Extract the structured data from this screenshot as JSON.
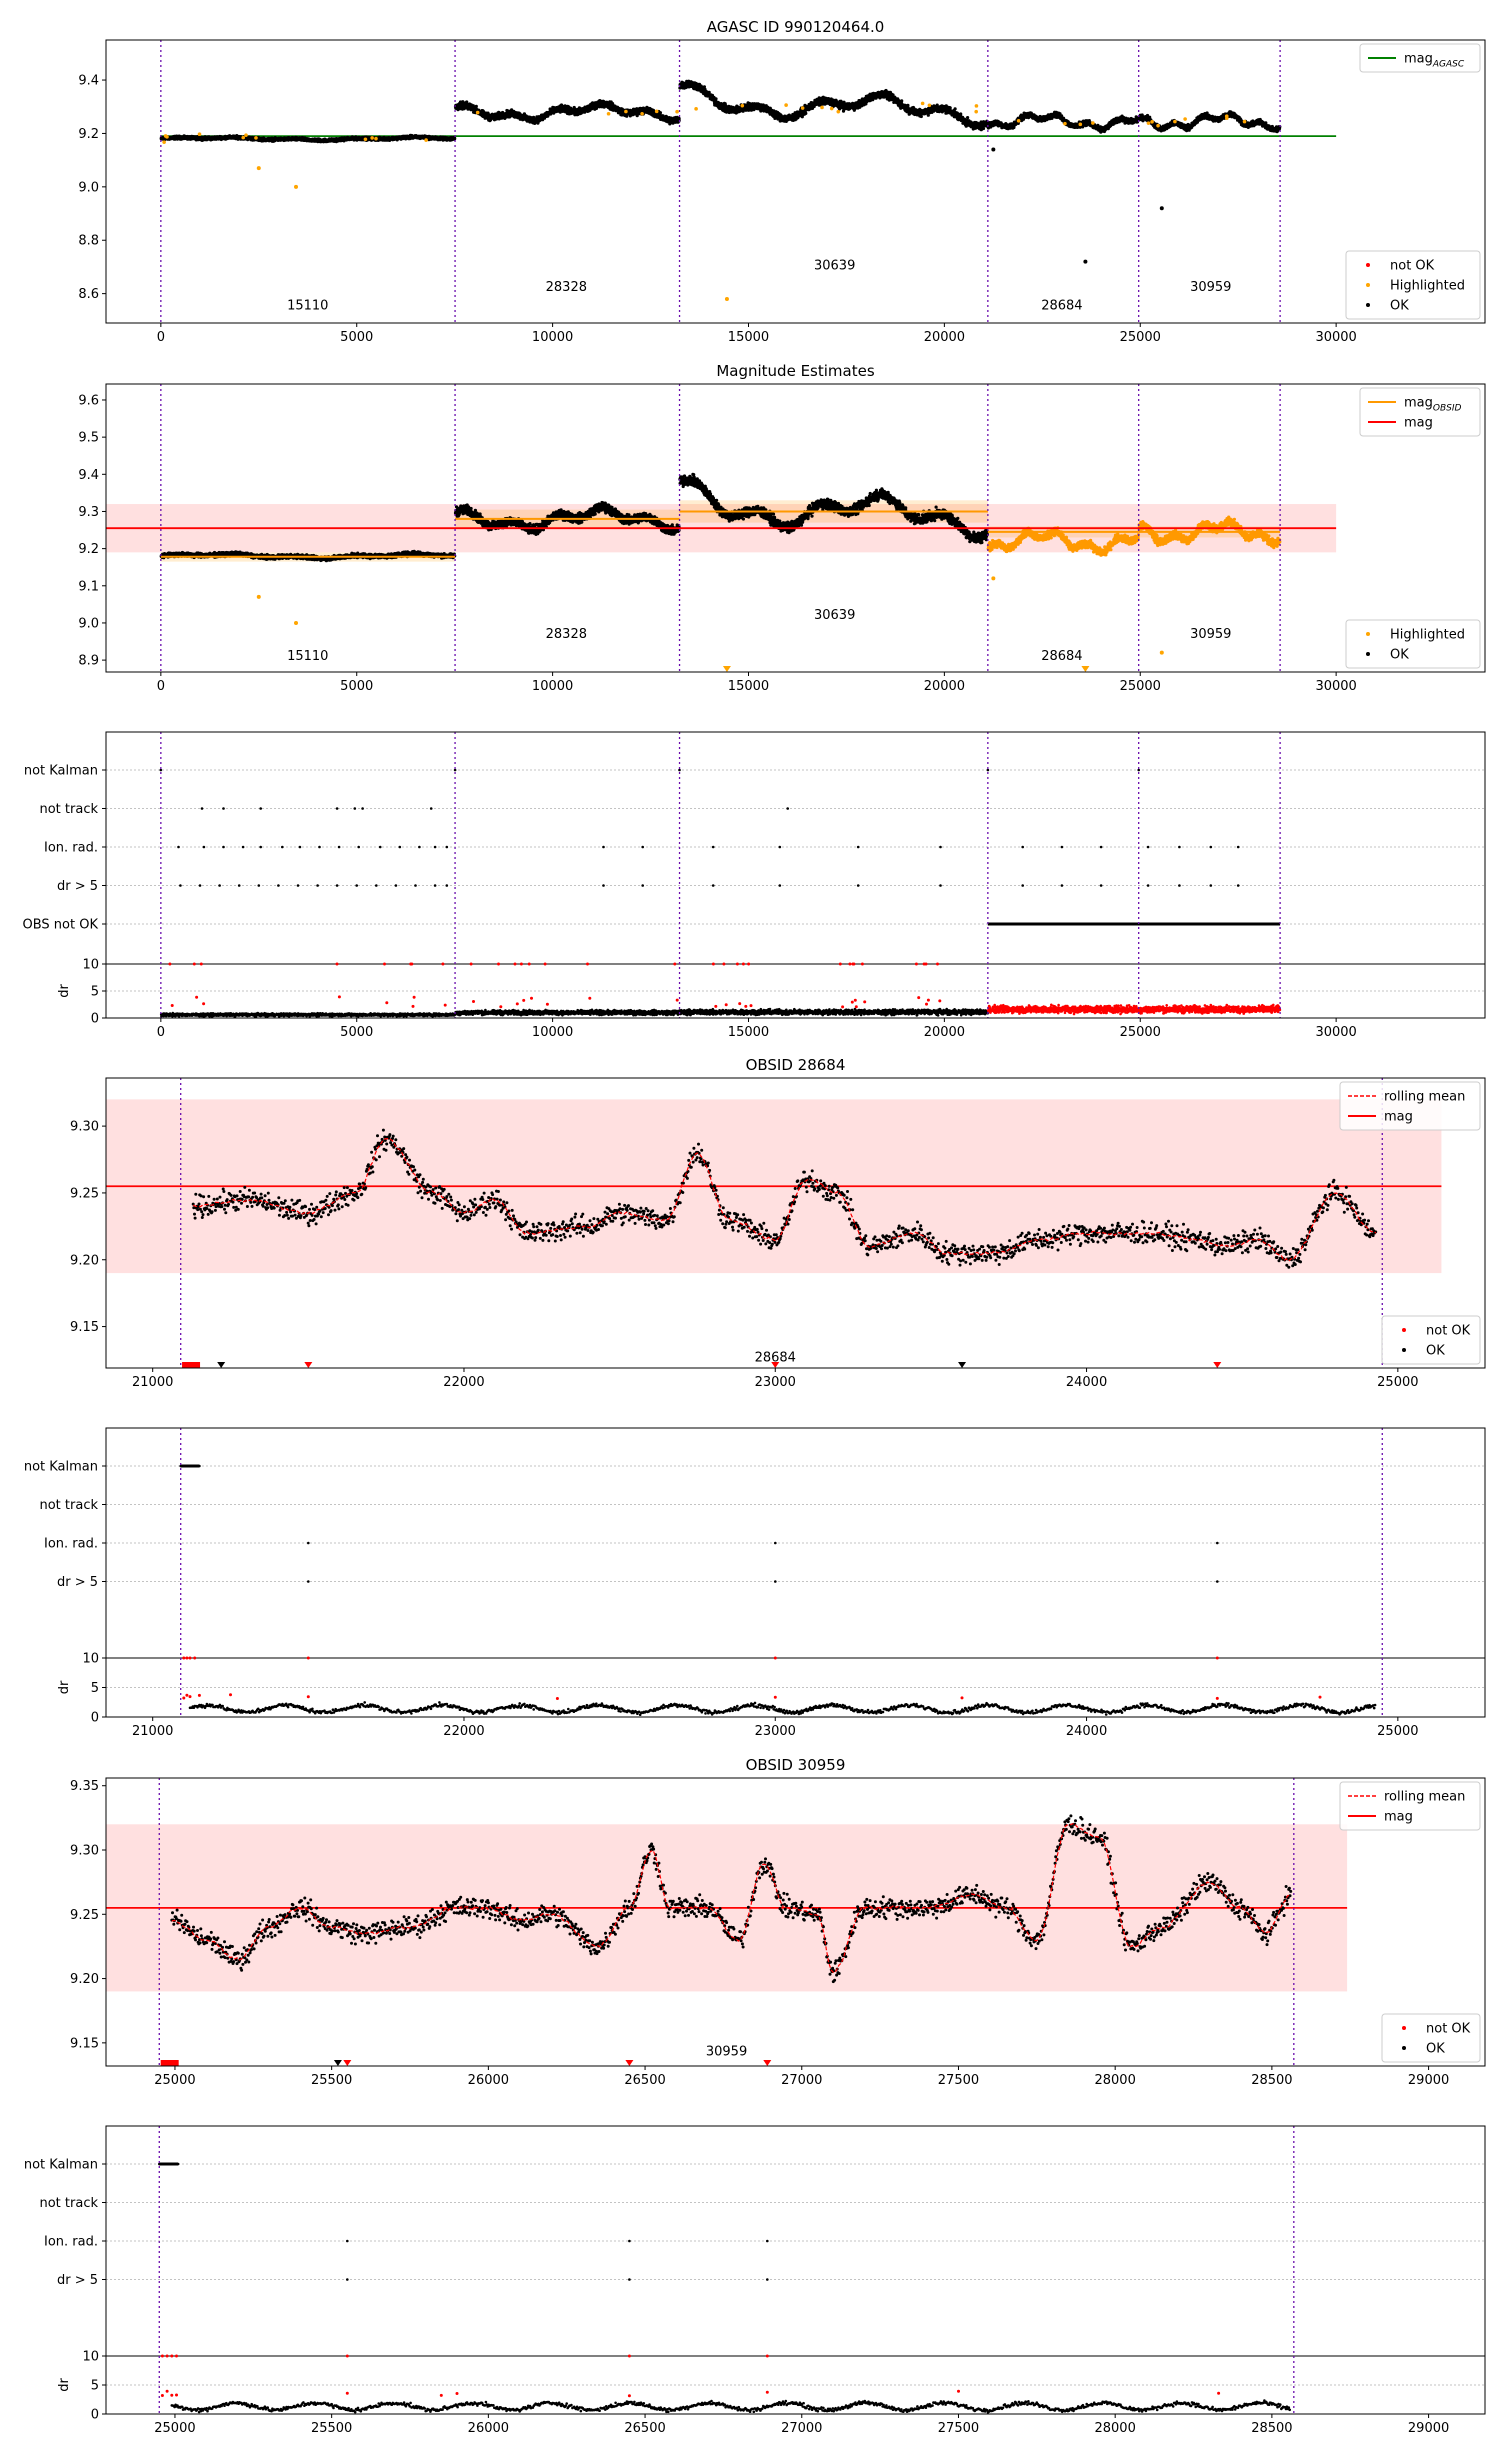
{
  "chart_data": [
    {
      "id": "p1",
      "type": "scatter",
      "title": "AGASC ID 990120464.0",
      "xlim": [
        -1400,
        33800
      ],
      "ylim": [
        8.49,
        9.55
      ],
      "xticks": [
        0,
        5000,
        10000,
        15000,
        20000,
        25000,
        30000
      ],
      "yticks": [
        8.6,
        8.8,
        9.0,
        9.2,
        9.4
      ],
      "ytick_labels": [
        "8.6",
        "8.8",
        "9.0",
        "9.2",
        "9.4"
      ],
      "boundaries": [
        0,
        7510,
        13240,
        21110,
        24960,
        28570
      ],
      "obsids": [
        {
          "label": "15110",
          "x": 3750,
          "y": 8.54
        },
        {
          "label": "28328",
          "x": 10350,
          "y": 8.61
        },
        {
          "label": "30639",
          "x": 17200,
          "y": 8.69
        },
        {
          "label": "28684",
          "x": 23000,
          "y": 8.54
        },
        {
          "label": "30959",
          "x": 26800,
          "y": 8.61
        }
      ],
      "reference_line": {
        "name": "mag_AGASC",
        "value": 9.19,
        "x_range": [
          0,
          30000
        ],
        "color": "#008000"
      },
      "legend_upper": [
        {
          "label": "mag",
          "sub": "AGASC",
          "kind": "line",
          "color": "#008000"
        }
      ],
      "legend_lower": [
        {
          "label": "not OK",
          "kind": "dot",
          "color": "#ff0000"
        },
        {
          "label": "Highlighted",
          "kind": "dot",
          "color": "#ffa500"
        },
        {
          "label": "OK",
          "kind": "dot",
          "color": "#000000"
        }
      ],
      "segments": [
        {
          "x0": 0,
          "x1": 7510,
          "base": 9.18,
          "amp": 0.004,
          "noise": 0.008
        },
        {
          "x0": 7510,
          "x1": 13240,
          "base": 9.28,
          "amp": 0.02,
          "noise": 0.018
        },
        {
          "x0": 13240,
          "x1": 21110,
          "base": 9.3,
          "amp": 0.035,
          "noise": 0.02
        },
        {
          "x0": 21110,
          "x1": 24960,
          "base": 9.245,
          "amp": 0.02,
          "noise": 0.014
        },
        {
          "x0": 24960,
          "x1": 28570,
          "base": 9.245,
          "amp": 0.02,
          "noise": 0.014
        }
      ],
      "outliers": [
        {
          "x": 2500,
          "y": 9.07,
          "color": "#ffa500"
        },
        {
          "x": 3450,
          "y": 9.0,
          "color": "#ffa500"
        },
        {
          "x": 14450,
          "y": 8.58,
          "color": "#ffa500"
        },
        {
          "x": 23600,
          "y": 8.72,
          "color": "#000000"
        },
        {
          "x": 25550,
          "y": 8.92,
          "color": "#000000"
        },
        {
          "x": 21250,
          "y": 9.14,
          "color": "#000000"
        }
      ]
    },
    {
      "id": "p2",
      "type": "scatter",
      "title": "Magnitude Estimates",
      "xlim": [
        -1400,
        33800
      ],
      "ylim": [
        8.868,
        9.643
      ],
      "xticks": [
        0,
        5000,
        10000,
        15000,
        20000,
        25000,
        30000
      ],
      "yticks": [
        8.9,
        9.0,
        9.1,
        9.2,
        9.3,
        9.4,
        9.5,
        9.6
      ],
      "ytick_labels": [
        "8.9",
        "9.0",
        "9.1",
        "9.2",
        "9.3",
        "9.4",
        "9.5",
        "9.6"
      ],
      "boundaries": [
        0,
        7510,
        13240,
        21110,
        24960,
        28570
      ],
      "obsids": [
        {
          "label": "15110",
          "x": 3750,
          "y": 8.9
        },
        {
          "label": "28328",
          "x": 10350,
          "y": 8.96
        },
        {
          "label": "30639",
          "x": 17200,
          "y": 9.01
        },
        {
          "label": "28684",
          "x": 23000,
          "y": 8.9
        },
        {
          "label": "30959",
          "x": 26800,
          "y": 8.96
        }
      ],
      "mag_line": {
        "value": 9.255,
        "band": [
          9.19,
          9.32
        ],
        "x_range": [
          -1400,
          30000
        ]
      },
      "obsid_mags": [
        {
          "x0": 0,
          "x1": 7510,
          "value": 9.178,
          "band": [
            9.165,
            9.19
          ]
        },
        {
          "x0": 7510,
          "x1": 13240,
          "value": 9.28,
          "band": [
            9.255,
            9.305
          ]
        },
        {
          "x0": 13240,
          "x1": 21110,
          "value": 9.3,
          "band": [
            9.27,
            9.33
          ]
        },
        {
          "x0": 21110,
          "x1": 24960,
          "value": 9.245,
          "band": [
            9.23,
            9.26
          ]
        },
        {
          "x0": 24960,
          "x1": 28570,
          "value": 9.245,
          "band": [
            9.23,
            9.26
          ]
        }
      ],
      "legend_upper": [
        {
          "label": "mag",
          "sub": "OBSID",
          "kind": "line",
          "color": "#ff9900"
        },
        {
          "label": "mag",
          "kind": "line",
          "color": "#ff0000"
        }
      ],
      "legend_lower": [
        {
          "label": "Highlighted",
          "kind": "dot",
          "color": "#ffa500"
        },
        {
          "label": "OK",
          "kind": "dot",
          "color": "#000000"
        }
      ],
      "segments": [
        {
          "x0": 0,
          "x1": 7510,
          "base": 9.18,
          "amp": 0.004,
          "noise": 0.008,
          "color": "#000000"
        },
        {
          "x0": 7510,
          "x1": 13240,
          "base": 9.28,
          "amp": 0.02,
          "noise": 0.018,
          "color": "#000000"
        },
        {
          "x0": 13240,
          "x1": 21110,
          "base": 9.3,
          "amp": 0.035,
          "noise": 0.02,
          "color": "#000000"
        },
        {
          "x0": 21110,
          "x1": 24960,
          "base": 9.22,
          "amp": 0.02,
          "noise": 0.015,
          "color": "#ff9900"
        },
        {
          "x0": 24960,
          "x1": 28570,
          "base": 9.245,
          "amp": 0.02,
          "noise": 0.016,
          "color": "#ff9900"
        }
      ],
      "outliers": [
        {
          "x": 2500,
          "y": 9.07,
          "color": "#ffa500"
        },
        {
          "x": 3450,
          "y": 9.0,
          "color": "#ffa500"
        },
        {
          "x": 25550,
          "y": 8.92,
          "color": "#ffa500"
        },
        {
          "x": 21250,
          "y": 9.12,
          "color": "#ffa500"
        }
      ],
      "clipped_markers": [
        14450,
        23600
      ]
    },
    {
      "id": "p3",
      "type": "scatter",
      "title": "",
      "xlim": [
        -1400,
        33800
      ],
      "ylim": [
        0,
        10
      ],
      "xticks": [
        0,
        5000,
        10000,
        15000,
        20000,
        25000,
        30000
      ],
      "yticks": [
        0,
        5,
        10
      ],
      "ytick_labels": [
        "0",
        "5",
        "10"
      ],
      "ylabel": "dr",
      "boundaries": [
        0,
        7510,
        13240,
        21110,
        24960,
        28570
      ],
      "flag_labels": [
        "not Kalman",
        "not track",
        "Ion. rad.",
        "dr > 5",
        "OBS not OK"
      ],
      "flags": [
        [
          0,
          7510,
          13240,
          21110,
          24960
        ],
        [
          1050,
          1600,
          2550,
          4500,
          4950,
          5150,
          6900,
          16000
        ],
        [
          450,
          1100,
          1600,
          2100,
          2550,
          3100,
          3550,
          4050,
          4550,
          5050,
          5600,
          6100,
          6600,
          7000,
          7300,
          11300,
          12300,
          14100,
          15800,
          17800,
          19900,
          22000,
          23000,
          24000,
          25200,
          26000,
          26800,
          27500
        ],
        [
          500,
          1000,
          1500,
          2000,
          2500,
          3000,
          3500,
          4000,
          4500,
          5000,
          5500,
          6000,
          6500,
          7000,
          7300,
          11300,
          12300,
          14100,
          15800,
          17800,
          19900,
          22000,
          23000,
          24000,
          25200,
          26000,
          26800,
          27500
        ]
      ],
      "obs_not_ok_range": [
        21110,
        28570
      ],
      "dr_segments": [
        {
          "x0": 0,
          "x1": 7510,
          "base": 0.6,
          "color": "#000000",
          "red_spikes": 8
        },
        {
          "x0": 7510,
          "x1": 13240,
          "base": 1.0,
          "color": "#000000",
          "red_spikes": 8
        },
        {
          "x0": 13240,
          "x1": 21110,
          "base": 1.1,
          "color": "#000000",
          "red_spikes": 14
        },
        {
          "x0": 21110,
          "x1": 28570,
          "base": 1.6,
          "color": "#ff0000",
          "red_spikes": 0
        }
      ]
    },
    {
      "id": "p4",
      "type": "line",
      "title": "OBSID 28684",
      "xlim": [
        20850,
        25280
      ],
      "ylim": [
        9.119,
        9.336
      ],
      "xticks": [
        21000,
        22000,
        23000,
        24000,
        25000
      ],
      "yticks": [
        9.15,
        9.2,
        9.25,
        9.3
      ],
      "ytick_labels": [
        "9.15",
        "9.20",
        "9.25",
        "9.30"
      ],
      "boundaries": [
        21090,
        24950
      ],
      "obsids": [
        {
          "label": "28684",
          "x": 23000,
          "y": 9.124
        }
      ],
      "mag_line": {
        "value": 9.255,
        "band": [
          9.19,
          9.32
        ],
        "x_range": [
          20850,
          25140
        ]
      },
      "legend_upper": [
        {
          "label": "rolling mean",
          "kind": "dashed",
          "color": "#ff0000"
        },
        {
          "label": "mag",
          "kind": "line",
          "color": "#ff0000"
        }
      ],
      "legend_lower": [
        {
          "label": "not OK",
          "kind": "dot",
          "color": "#ff0000"
        },
        {
          "label": "OK",
          "kind": "dot",
          "color": "#000000"
        }
      ],
      "series_range": [
        21130,
        24930
      ],
      "series_keypoints": [
        [
          21130,
          9.24
        ],
        [
          21300,
          9.245
        ],
        [
          21500,
          9.235
        ],
        [
          21650,
          9.25
        ],
        [
          21750,
          9.29
        ],
        [
          21900,
          9.25
        ],
        [
          22000,
          9.235
        ],
        [
          22100,
          9.245
        ],
        [
          22200,
          9.22
        ],
        [
          22400,
          9.225
        ],
        [
          22500,
          9.235
        ],
        [
          22650,
          9.23
        ],
        [
          22750,
          9.28
        ],
        [
          22850,
          9.23
        ],
        [
          23000,
          9.215
        ],
        [
          23100,
          9.26
        ],
        [
          23200,
          9.25
        ],
        [
          23300,
          9.21
        ],
        [
          23450,
          9.22
        ],
        [
          23550,
          9.205
        ],
        [
          23700,
          9.205
        ],
        [
          23850,
          9.215
        ],
        [
          24000,
          9.22
        ],
        [
          24200,
          9.22
        ],
        [
          24350,
          9.215
        ],
        [
          24450,
          9.21
        ],
        [
          24550,
          9.215
        ],
        [
          24650,
          9.2
        ],
        [
          24800,
          9.25
        ],
        [
          24930,
          9.22
        ]
      ],
      "markers": [
        {
          "x": 21120,
          "color": "#ff0000",
          "wide": true
        },
        {
          "x": 21220,
          "color": "#000000"
        },
        {
          "x": 21500,
          "color": "#ff0000"
        },
        {
          "x": 23000,
          "color": "#ff0000"
        },
        {
          "x": 23600,
          "color": "#000000"
        },
        {
          "x": 24420,
          "color": "#ff0000"
        }
      ]
    },
    {
      "id": "p5",
      "type": "scatter",
      "title": "",
      "xlim": [
        20850,
        25280
      ],
      "ylim": [
        0,
        10
      ],
      "xticks": [
        21000,
        22000,
        23000,
        24000,
        25000
      ],
      "yticks": [
        0,
        5,
        10
      ],
      "ytick_labels": [
        "0",
        "5",
        "10"
      ],
      "ylabel": "dr",
      "boundaries": [
        21090,
        24950
      ],
      "flag_labels": [
        "not Kalman",
        "not track",
        "Ion. rad.",
        "dr > 5"
      ],
      "flags": [
        [
          21090,
          21105,
          21120,
          21135,
          21150
        ],
        [],
        [
          21500,
          23000,
          24420
        ],
        [
          21500,
          23000,
          24420
        ]
      ],
      "obs_not_ok_range": null,
      "dr_range": [
        21120,
        24930
      ],
      "dr_base": 1.4,
      "red_dr_x": [
        21100,
        21110,
        21120,
        21150,
        21500,
        23000,
        24420,
        22300,
        23600,
        24750,
        21250
      ],
      "top_red": [
        21100,
        21110,
        21120,
        21135,
        21500,
        23000,
        24420
      ]
    },
    {
      "id": "p6",
      "type": "line",
      "title": "OBSID 30959",
      "xlim": [
        24780,
        29180
      ],
      "ylim": [
        9.132,
        9.356
      ],
      "xticks": [
        25000,
        25500,
        26000,
        26500,
        27000,
        27500,
        28000,
        28500,
        29000
      ],
      "yticks": [
        9.15,
        9.2,
        9.25,
        9.3,
        9.35
      ],
      "ytick_labels": [
        "9.15",
        "9.20",
        "9.25",
        "9.30",
        "9.35"
      ],
      "boundaries": [
        24950,
        28570
      ],
      "obsids": [
        {
          "label": "30959",
          "x": 26760,
          "y": 9.14
        }
      ],
      "mag_line": {
        "value": 9.255,
        "band": [
          9.19,
          9.32
        ],
        "x_range": [
          24780,
          28740
        ]
      },
      "legend_upper": [
        {
          "label": "rolling mean",
          "kind": "dashed",
          "color": "#ff0000"
        },
        {
          "label": "mag",
          "kind": "line",
          "color": "#ff0000"
        }
      ],
      "legend_lower": [
        {
          "label": "not OK",
          "kind": "dot",
          "color": "#ff0000"
        },
        {
          "label": "OK",
          "kind": "dot",
          "color": "#000000"
        }
      ],
      "series_range": [
        24990,
        28560
      ],
      "series_keypoints": [
        [
          24990,
          9.245
        ],
        [
          25100,
          9.23
        ],
        [
          25200,
          9.215
        ],
        [
          25300,
          9.24
        ],
        [
          25400,
          9.255
        ],
        [
          25500,
          9.24
        ],
        [
          25600,
          9.235
        ],
        [
          25750,
          9.24
        ],
        [
          25900,
          9.255
        ],
        [
          26000,
          9.255
        ],
        [
          26100,
          9.245
        ],
        [
          26200,
          9.25
        ],
        [
          26350,
          9.225
        ],
        [
          26450,
          9.255
        ],
        [
          26520,
          9.3
        ],
        [
          26580,
          9.255
        ],
        [
          26700,
          9.255
        ],
        [
          26800,
          9.23
        ],
        [
          26880,
          9.29
        ],
        [
          26950,
          9.255
        ],
        [
          27050,
          9.25
        ],
        [
          27100,
          9.205
        ],
        [
          27200,
          9.255
        ],
        [
          27400,
          9.255
        ],
        [
          27550,
          9.265
        ],
        [
          27650,
          9.255
        ],
        [
          27750,
          9.23
        ],
        [
          27850,
          9.32
        ],
        [
          27950,
          9.31
        ],
        [
          28050,
          9.225
        ],
        [
          28150,
          9.24
        ],
        [
          28300,
          9.275
        ],
        [
          28400,
          9.255
        ],
        [
          28480,
          9.235
        ],
        [
          28560,
          9.265
        ]
      ],
      "markers": [
        {
          "x": 24980,
          "color": "#ff0000",
          "wide": true
        },
        {
          "x": 25520,
          "color": "#000000"
        },
        {
          "x": 25550,
          "color": "#ff0000"
        },
        {
          "x": 26450,
          "color": "#ff0000"
        },
        {
          "x": 26890,
          "color": "#ff0000"
        }
      ]
    },
    {
      "id": "p7",
      "type": "scatter",
      "title": "",
      "xlim": [
        24780,
        29180
      ],
      "ylim": [
        0,
        10
      ],
      "xticks": [
        25000,
        25500,
        26000,
        26500,
        27000,
        27500,
        28000,
        28500,
        29000
      ],
      "yticks": [
        0,
        5,
        10
      ],
      "ytick_labels": [
        "0",
        "5",
        "10"
      ],
      "ylabel": "dr",
      "boundaries": [
        24950,
        28570
      ],
      "flag_labels": [
        "not Kalman",
        "not track",
        "Ion. rad.",
        "dr > 5"
      ],
      "flags": [
        [
          24950,
          24965,
          24980,
          24995,
          25010
        ],
        [],
        [
          25550,
          26450,
          26890
        ],
        [
          25550,
          26450,
          26890
        ]
      ],
      "obs_not_ok_range": null,
      "dr_range": [
        24990,
        28560
      ],
      "dr_base": 1.3,
      "red_dr_x": [
        24960,
        24975,
        24990,
        25005,
        25550,
        26450,
        26890,
        25850,
        25900,
        27500,
        28330
      ],
      "top_red": [
        24960,
        24975,
        24990,
        25005,
        25550,
        26450,
        26890
      ]
    }
  ]
}
